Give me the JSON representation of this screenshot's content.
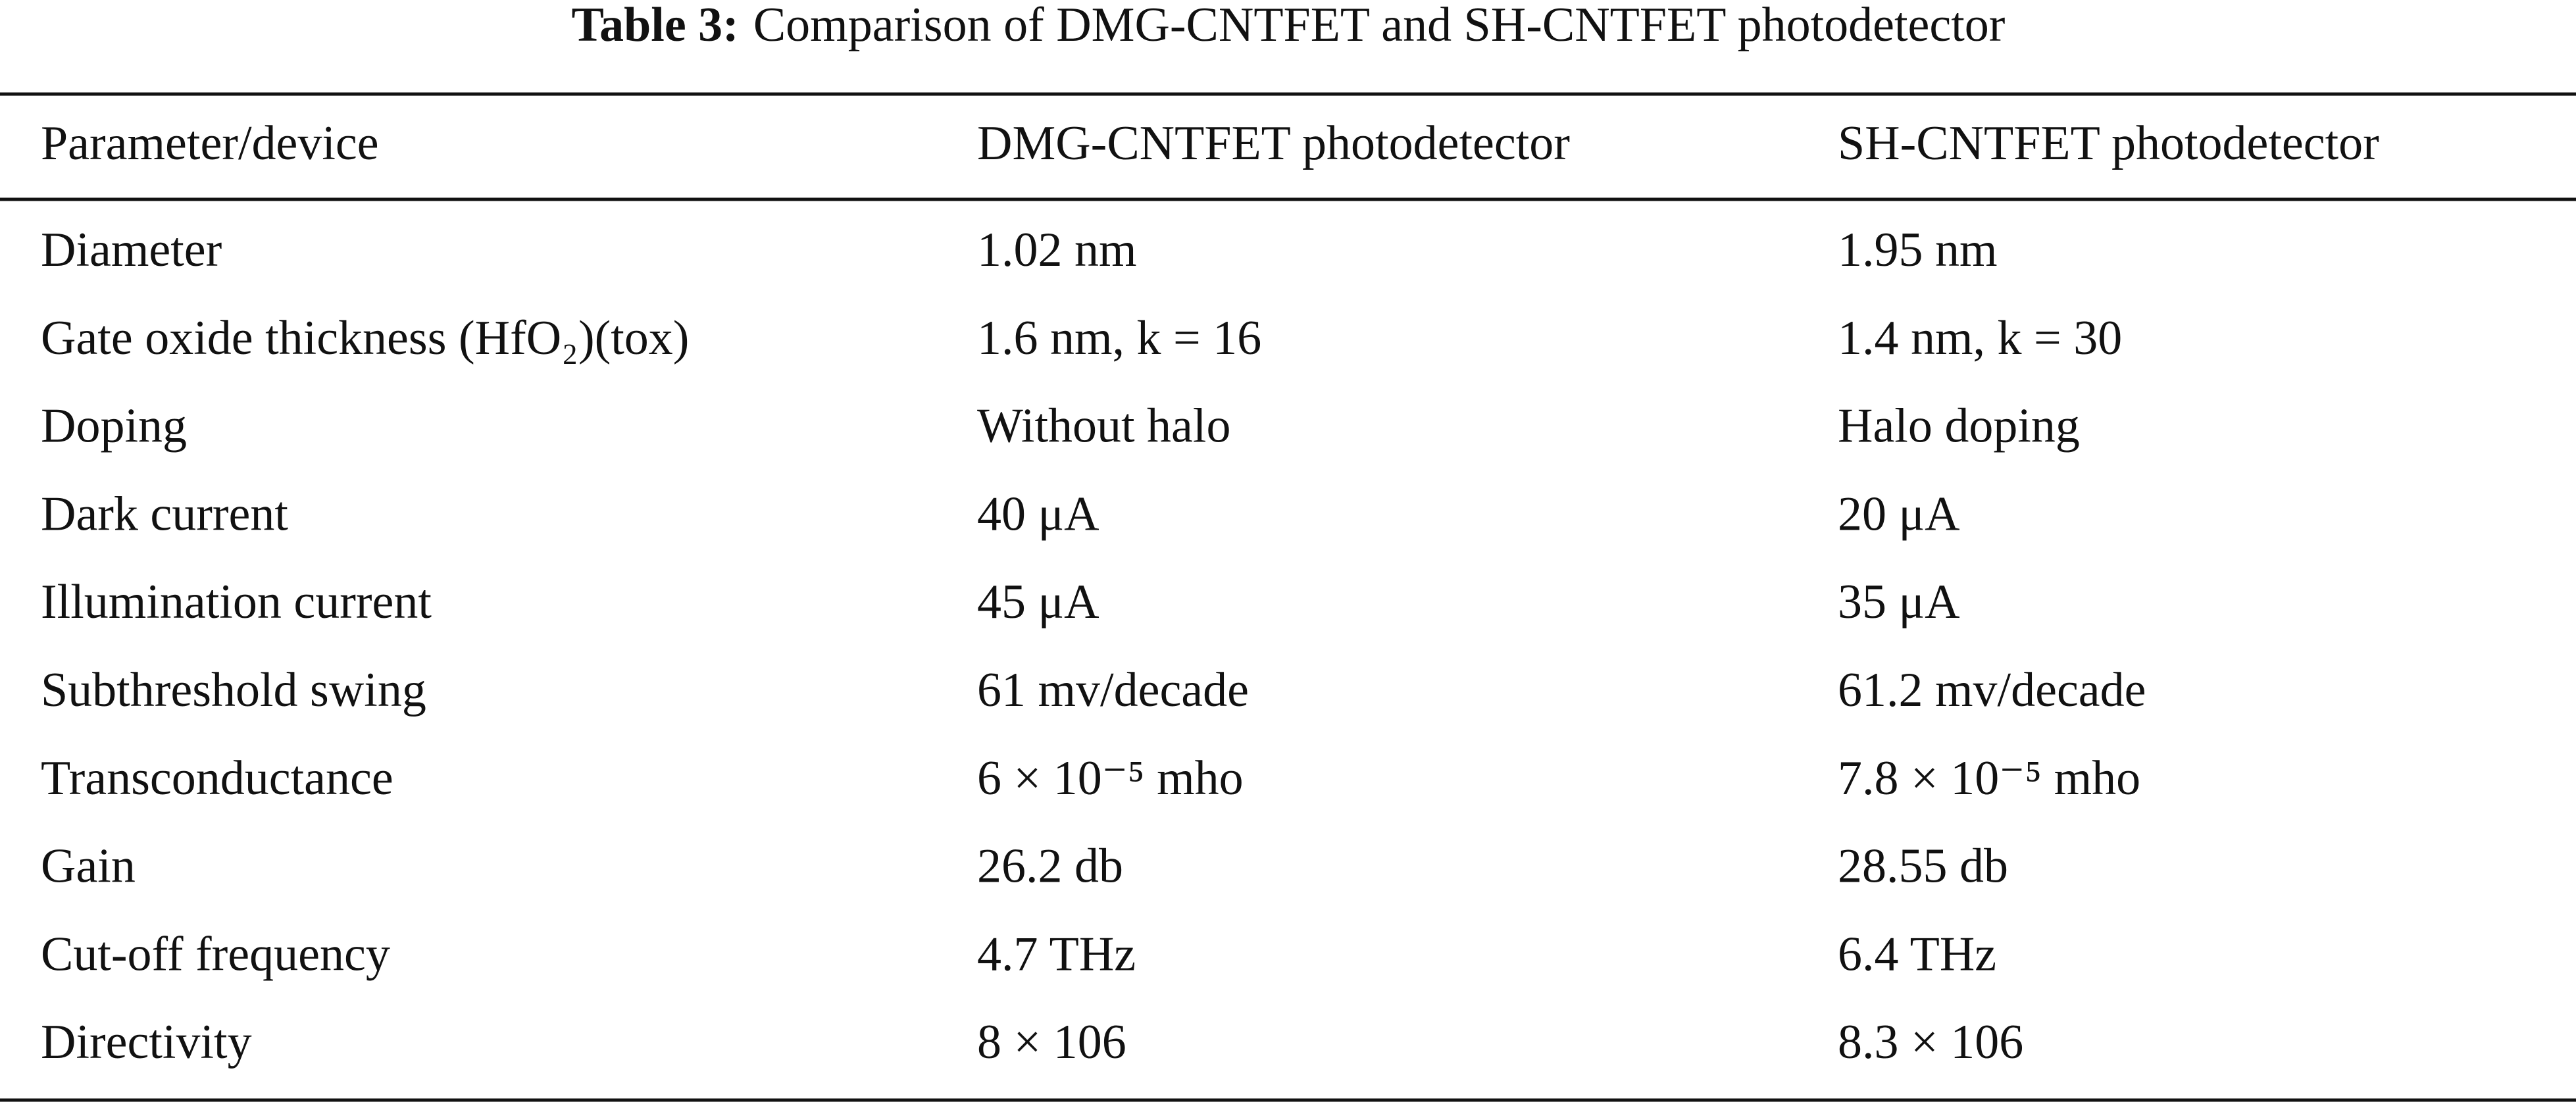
{
  "title": {
    "label": "Table 3:",
    "text": "Comparison of DMG-CNTFET and SH-CNTFET photodetector"
  },
  "table": {
    "header": [
      "Parameter/device",
      "DMG-CNTFET photodetector",
      "SH-CNTFET photodetector"
    ],
    "rows": [
      [
        "Diameter",
        "1.02 nm",
        "1.95 nm"
      ],
      [
        "Gate oxide thickness (HfO₂)(tox)",
        "1.6 nm, k = 16",
        "1.4 nm, k = 30"
      ],
      [
        "Doping",
        "Without halo",
        "Halo doping"
      ],
      [
        "Dark current",
        "40 μA",
        "20 μA"
      ],
      [
        "Illumination current",
        "45 μA",
        "35 μA"
      ],
      [
        "Subthreshold swing",
        "61 mv/decade",
        "61.2 mv/decade"
      ],
      [
        "Transconductance",
        "6 × 10⁻⁵ mho",
        "7.8 × 10⁻⁵ mho"
      ],
      [
        "Gain",
        "26.2 db",
        "28.55 db"
      ],
      [
        "Cut-off frequency",
        "4.7 THz",
        "6.4 THz"
      ],
      [
        "Directivity",
        "8 × 106",
        "8.3 × 106"
      ]
    ]
  }
}
